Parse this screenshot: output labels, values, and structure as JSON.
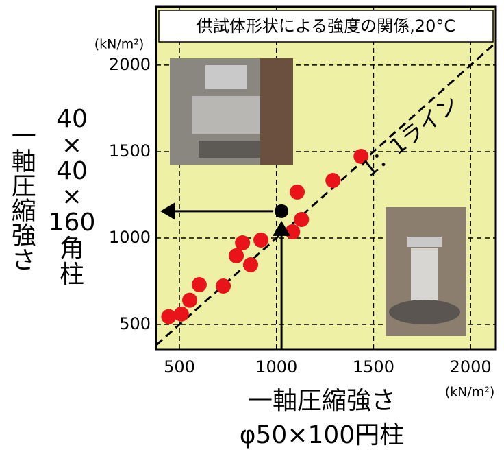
{
  "chart_data": {
    "type": "scatter",
    "title": "供試体形状による強度の関係,20°C",
    "x_label": "一軸圧縮強さ",
    "x_label_2": "φ50×100円柱",
    "y_label": "一軸圧縮強さ",
    "y_label_2": "40×40×160角柱",
    "x_unit": "(kN/m²)",
    "y_unit": "(kN/m²)",
    "annotation": "1：1ライン",
    "x": [
      445,
      510,
      553,
      602,
      726,
      793,
      825,
      867,
      920,
      1107,
      1129,
      1083,
      1291,
      1436
    ],
    "values": [
      545,
      560,
      640,
      730,
      722,
      897,
      972,
      845,
      988,
      1266,
      1107,
      1036,
      1333,
      1472
    ],
    "color": "#e8141a",
    "highlight": {
      "x": 1026,
      "y": 1155,
      "color": "#000000"
    },
    "xlim": [
      380,
      2130
    ],
    "ylim": [
      353,
      2337
    ],
    "xticks": [
      500,
      1000,
      1500,
      2000
    ],
    "yticks": [
      500,
      1000,
      1500,
      2000
    ],
    "grid": true,
    "background": "#eef0a6"
  }
}
